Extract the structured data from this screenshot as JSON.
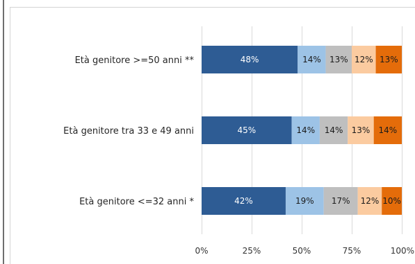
{
  "chart_data": {
    "type": "bar",
    "orientation": "horizontal",
    "stacked": true,
    "categories": [
      "Età genitore >=50 anni **",
      "Età genitore tra 33 e 49 anni",
      "Età genitore <=32 anni *"
    ],
    "series": [
      {
        "values": [
          48,
          45,
          42
        ],
        "labels": [
          "48%",
          "45%",
          "42%"
        ],
        "color": "#2e5c94",
        "label_color": "#ffffff"
      },
      {
        "values": [
          14,
          14,
          19
        ],
        "labels": [
          "14%",
          "14%",
          "19%"
        ],
        "color": "#9dc3e6",
        "label_color": "#1a1a1a"
      },
      {
        "values": [
          13,
          14,
          17
        ],
        "labels": [
          "13%",
          "14%",
          "17%"
        ],
        "color": "#bfbfbf",
        "label_color": "#1a1a1a"
      },
      {
        "values": [
          12,
          13,
          12
        ],
        "labels": [
          "12%",
          "13%",
          "12%"
        ],
        "color": "#fbcba0",
        "label_color": "#1a1a1a"
      },
      {
        "values": [
          13,
          14,
          10
        ],
        "labels": [
          "13%",
          "14%",
          "10%"
        ],
        "color": "#e46c0a",
        "label_color": "#1a1a1a"
      }
    ],
    "xlim": [
      0,
      100
    ],
    "xticks": [
      0,
      25,
      50,
      75,
      100
    ],
    "xtick_labels": [
      "0%",
      "25%",
      "50%",
      "75%",
      "100%"
    ],
    "grid": "vertical",
    "grid_color": "#d9d9d9"
  }
}
